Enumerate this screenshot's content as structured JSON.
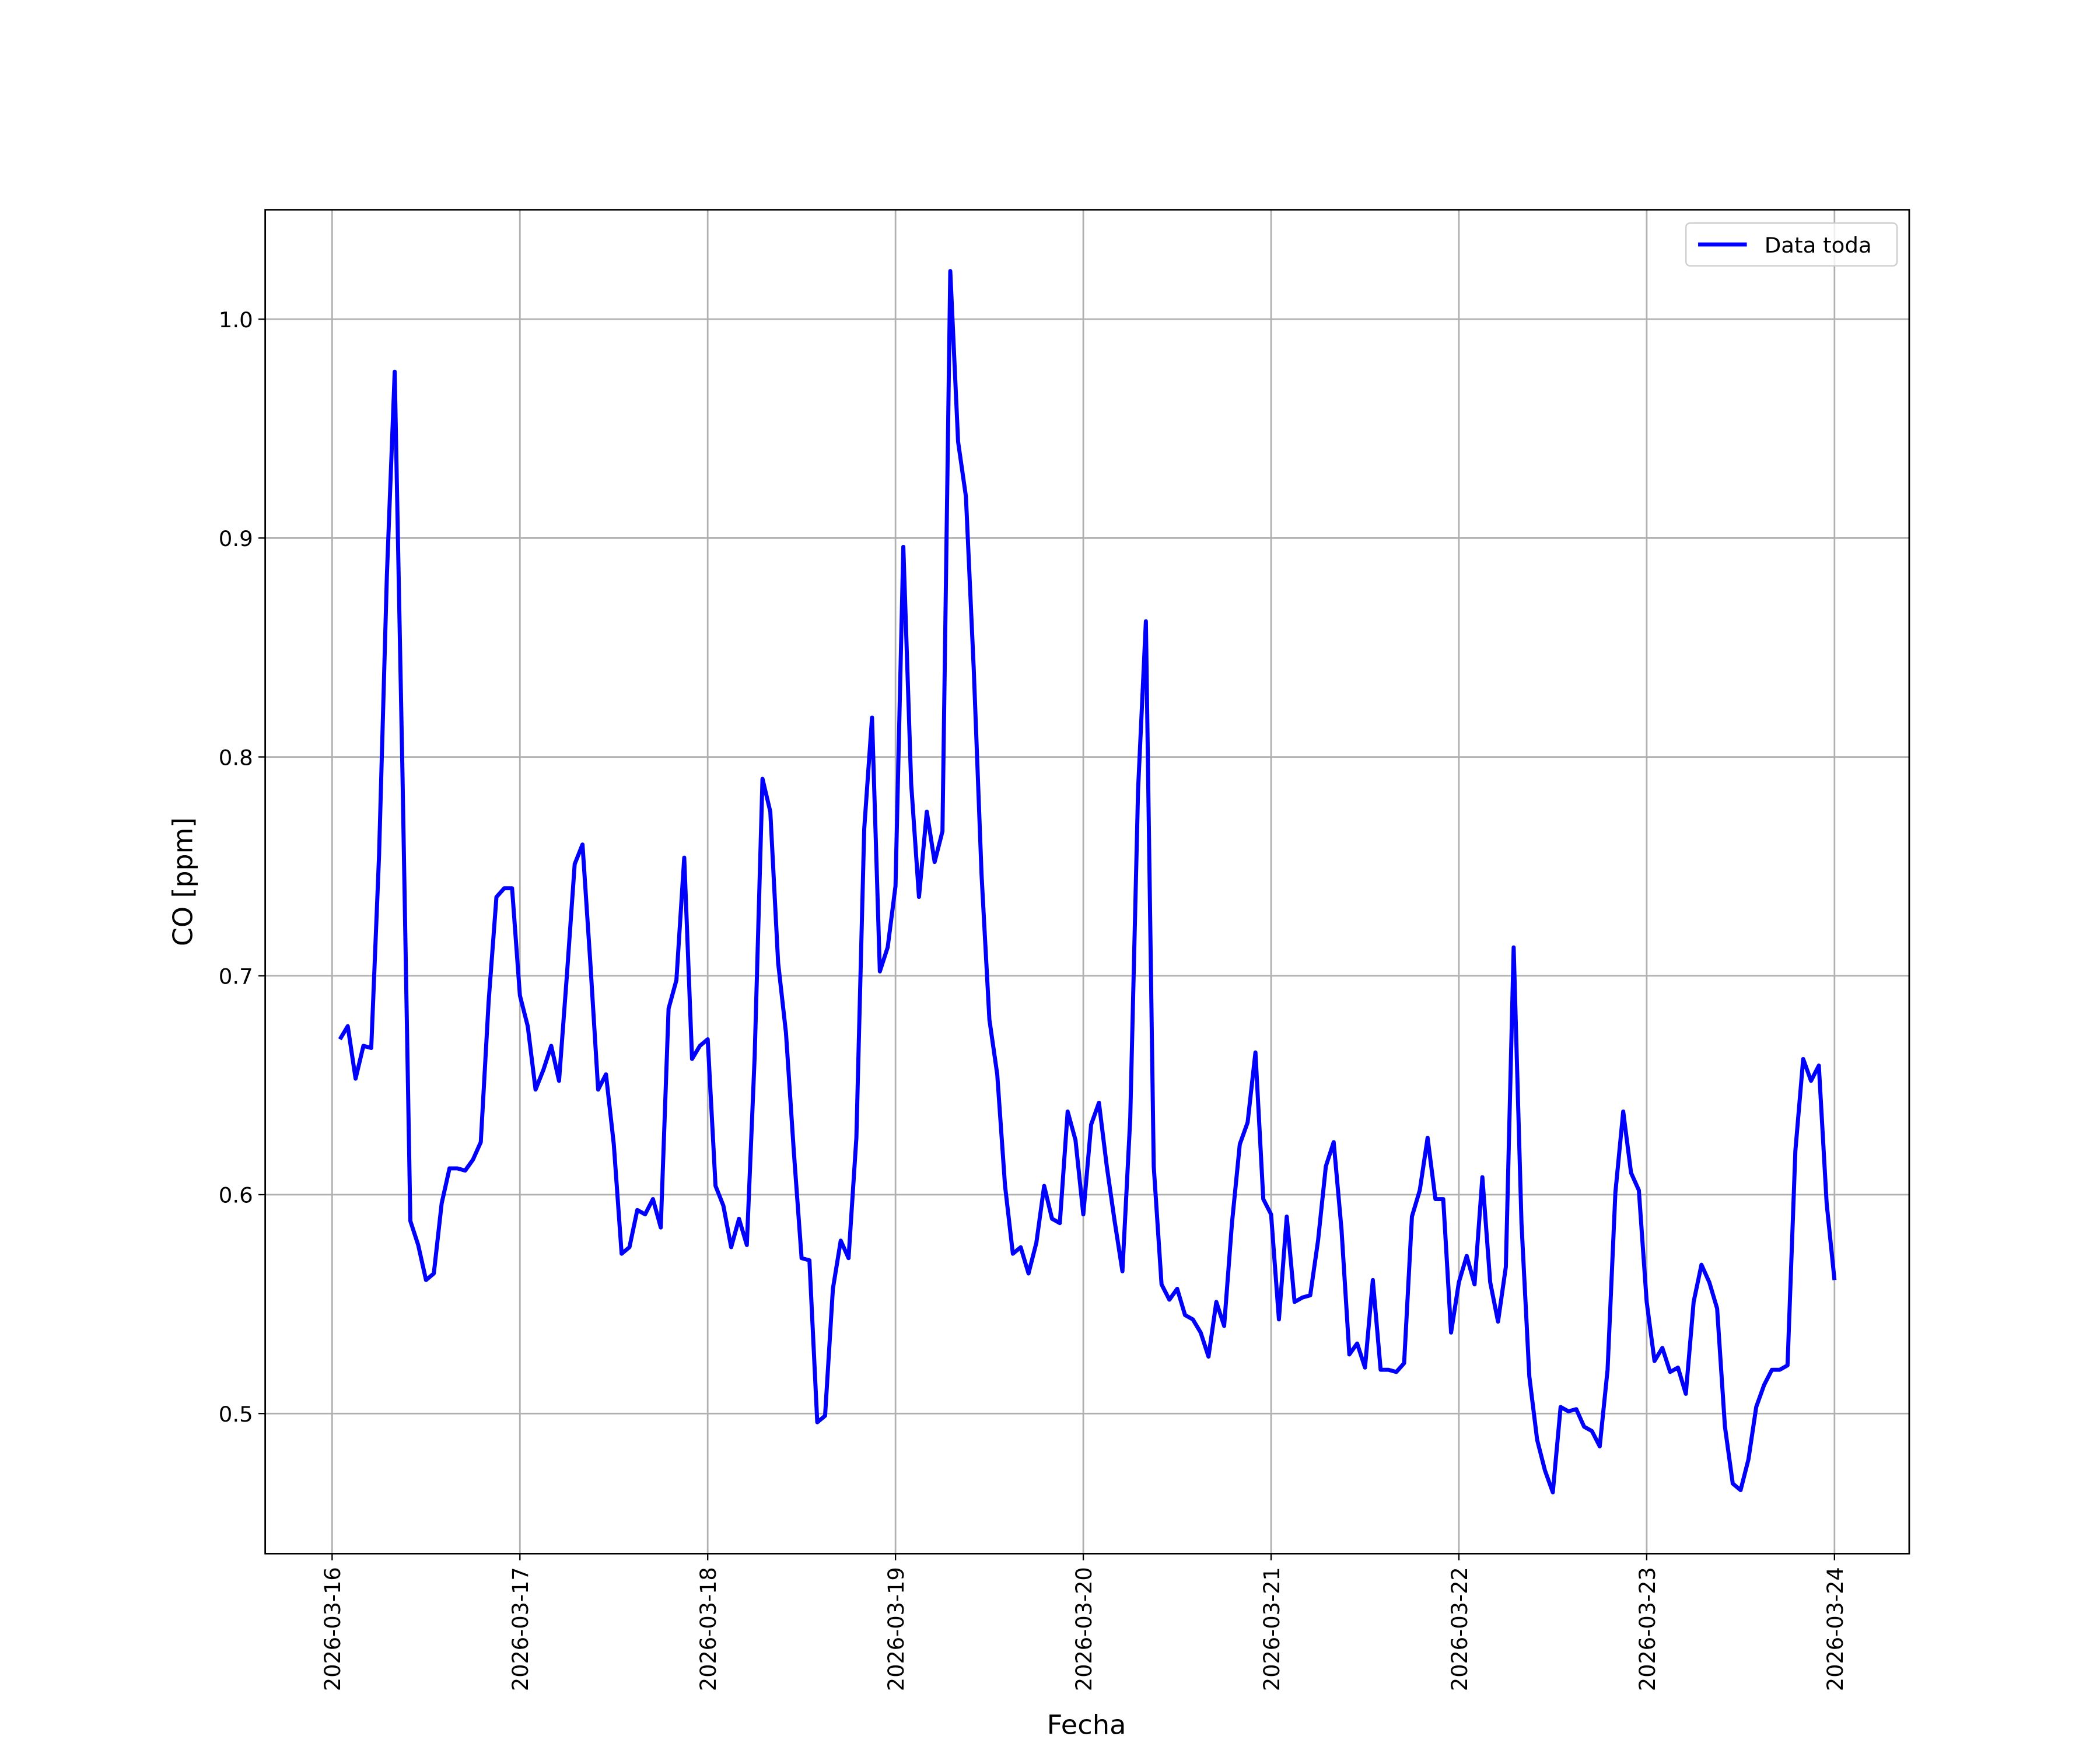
{
  "chart_data": {
    "type": "line",
    "x_label": "Fecha",
    "y_label": "CO [ppm]",
    "x": [
      "2026-03-16 01:00",
      "2026-03-16 02:00",
      "2026-03-16 03:00",
      "2026-03-16 04:00",
      "2026-03-16 05:00",
      "2026-03-16 06:00",
      "2026-03-16 07:00",
      "2026-03-16 08:00",
      "2026-03-16 09:00",
      "2026-03-16 10:00",
      "2026-03-16 11:00",
      "2026-03-16 12:00",
      "2026-03-16 13:00",
      "2026-03-16 14:00",
      "2026-03-16 15:00",
      "2026-03-16 16:00",
      "2026-03-16 17:00",
      "2026-03-16 18:00",
      "2026-03-16 19:00",
      "2026-03-16 20:00",
      "2026-03-16 21:00",
      "2026-03-16 22:00",
      "2026-03-16 23:00",
      "2026-03-17 00:00",
      "2026-03-17 01:00",
      "2026-03-17 02:00",
      "2026-03-17 03:00",
      "2026-03-17 04:00",
      "2026-03-17 05:00",
      "2026-03-17 06:00",
      "2026-03-17 07:00",
      "2026-03-17 08:00",
      "2026-03-17 09:00",
      "2026-03-17 10:00",
      "2026-03-17 11:00",
      "2026-03-17 12:00",
      "2026-03-17 13:00",
      "2026-03-17 14:00",
      "2026-03-17 15:00",
      "2026-03-17 16:00",
      "2026-03-17 17:00",
      "2026-03-17 18:00",
      "2026-03-17 19:00",
      "2026-03-17 20:00",
      "2026-03-17 21:00",
      "2026-03-17 22:00",
      "2026-03-17 23:00",
      "2026-03-18 00:00",
      "2026-03-18 01:00",
      "2026-03-18 02:00",
      "2026-03-18 03:00",
      "2026-03-18 04:00",
      "2026-03-18 05:00",
      "2026-03-18 06:00",
      "2026-03-18 07:00",
      "2026-03-18 08:00",
      "2026-03-18 09:00",
      "2026-03-18 10:00",
      "2026-03-18 11:00",
      "2026-03-18 12:00",
      "2026-03-18 13:00",
      "2026-03-18 14:00",
      "2026-03-18 15:00",
      "2026-03-18 16:00",
      "2026-03-18 17:00",
      "2026-03-18 18:00",
      "2026-03-18 19:00",
      "2026-03-18 20:00",
      "2026-03-18 21:00",
      "2026-03-18 22:00",
      "2026-03-18 23:00",
      "2026-03-19 00:00",
      "2026-03-19 01:00",
      "2026-03-19 02:00",
      "2026-03-19 03:00",
      "2026-03-19 04:00",
      "2026-03-19 05:00",
      "2026-03-19 06:00",
      "2026-03-19 07:00",
      "2026-03-19 08:00",
      "2026-03-19 09:00",
      "2026-03-19 10:00",
      "2026-03-19 11:00",
      "2026-03-19 12:00",
      "2026-03-19 13:00",
      "2026-03-19 14:00",
      "2026-03-19 15:00",
      "2026-03-19 16:00",
      "2026-03-19 17:00",
      "2026-03-19 18:00",
      "2026-03-19 19:00",
      "2026-03-19 20:00",
      "2026-03-19 21:00",
      "2026-03-19 22:00",
      "2026-03-19 23:00",
      "2026-03-20 00:00",
      "2026-03-20 01:00",
      "2026-03-20 02:00",
      "2026-03-20 03:00",
      "2026-03-20 04:00",
      "2026-03-20 05:00",
      "2026-03-20 06:00",
      "2026-03-20 07:00",
      "2026-03-20 08:00",
      "2026-03-20 09:00",
      "2026-03-20 10:00",
      "2026-03-20 11:00",
      "2026-03-20 12:00",
      "2026-03-20 13:00",
      "2026-03-20 14:00",
      "2026-03-20 15:00",
      "2026-03-20 16:00",
      "2026-03-20 17:00",
      "2026-03-20 18:00",
      "2026-03-20 19:00",
      "2026-03-20 20:00",
      "2026-03-20 21:00",
      "2026-03-20 22:00",
      "2026-03-20 23:00",
      "2026-03-21 00:00",
      "2026-03-21 01:00",
      "2026-03-21 02:00",
      "2026-03-21 03:00",
      "2026-03-21 04:00",
      "2026-03-21 05:00",
      "2026-03-21 06:00",
      "2026-03-21 07:00",
      "2026-03-21 08:00",
      "2026-03-21 09:00",
      "2026-03-21 10:00",
      "2026-03-21 11:00",
      "2026-03-21 12:00",
      "2026-03-21 13:00",
      "2026-03-21 14:00",
      "2026-03-21 15:00",
      "2026-03-21 16:00",
      "2026-03-21 17:00",
      "2026-03-21 18:00",
      "2026-03-21 19:00",
      "2026-03-21 20:00",
      "2026-03-21 21:00",
      "2026-03-21 22:00",
      "2026-03-21 23:00",
      "2026-03-22 00:00",
      "2026-03-22 01:00",
      "2026-03-22 02:00",
      "2026-03-22 03:00",
      "2026-03-22 04:00",
      "2026-03-22 05:00",
      "2026-03-22 06:00",
      "2026-03-22 07:00",
      "2026-03-22 08:00",
      "2026-03-22 09:00",
      "2026-03-22 10:00",
      "2026-03-22 11:00",
      "2026-03-22 12:00",
      "2026-03-22 13:00",
      "2026-03-22 14:00",
      "2026-03-22 15:00",
      "2026-03-22 16:00",
      "2026-03-22 17:00",
      "2026-03-22 18:00",
      "2026-03-22 19:00",
      "2026-03-22 20:00",
      "2026-03-22 21:00",
      "2026-03-22 22:00",
      "2026-03-22 23:00",
      "2026-03-23 00:00",
      "2026-03-23 01:00",
      "2026-03-23 02:00",
      "2026-03-23 03:00",
      "2026-03-23 04:00",
      "2026-03-23 05:00",
      "2026-03-23 06:00",
      "2026-03-23 07:00",
      "2026-03-23 08:00",
      "2026-03-23 09:00",
      "2026-03-23 10:00",
      "2026-03-23 11:00",
      "2026-03-23 12:00",
      "2026-03-23 13:00",
      "2026-03-23 14:00",
      "2026-03-23 15:00",
      "2026-03-23 16:00",
      "2026-03-23 17:00",
      "2026-03-23 18:00",
      "2026-03-23 19:00",
      "2026-03-23 20:00",
      "2026-03-23 21:00",
      "2026-03-23 22:00",
      "2026-03-23 23:00",
      "2026-03-24 00:00"
    ],
    "series": [
      {
        "name": "Data toda",
        "color": "#0000ff",
        "values": [
          0.671,
          0.677,
          0.653,
          0.668,
          0.667,
          0.755,
          0.883,
          0.976,
          0.791,
          0.588,
          0.577,
          0.561,
          0.564,
          0.596,
          0.612,
          0.612,
          0.611,
          0.616,
          0.624,
          0.688,
          0.736,
          0.74,
          0.74,
          0.691,
          0.677,
          0.648,
          0.657,
          0.668,
          0.652,
          0.7,
          0.751,
          0.76,
          0.706,
          0.648,
          0.655,
          0.623,
          0.573,
          0.576,
          0.593,
          0.591,
          0.598,
          0.585,
          0.685,
          0.698,
          0.754,
          0.662,
          0.668,
          0.671,
          0.604,
          0.595,
          0.576,
          0.589,
          0.577,
          0.663,
          0.79,
          0.775,
          0.706,
          0.674,
          0.62,
          0.571,
          0.57,
          0.496,
          0.499,
          0.557,
          0.579,
          0.571,
          0.626,
          0.767,
          0.818,
          0.702,
          0.713,
          0.741,
          0.896,
          0.788,
          0.736,
          0.775,
          0.752,
          0.766,
          1.022,
          0.944,
          0.919,
          0.84,
          0.746,
          0.68,
          0.655,
          0.604,
          0.573,
          0.576,
          0.564,
          0.578,
          0.604,
          0.589,
          0.587,
          0.638,
          0.625,
          0.591,
          0.632,
          0.642,
          0.613,
          0.588,
          0.565,
          0.635,
          0.785,
          0.862,
          0.613,
          0.559,
          0.552,
          0.557,
          0.545,
          0.543,
          0.537,
          0.526,
          0.551,
          0.54,
          0.587,
          0.623,
          0.633,
          0.665,
          0.598,
          0.591,
          0.543,
          0.59,
          0.551,
          0.553,
          0.554,
          0.579,
          0.613,
          0.624,
          0.584,
          0.527,
          0.532,
          0.521,
          0.561,
          0.52,
          0.52,
          0.519,
          0.523,
          0.59,
          0.602,
          0.626,
          0.598,
          0.598,
          0.537,
          0.56,
          0.572,
          0.559,
          0.608,
          0.56,
          0.542,
          0.567,
          0.713,
          0.587,
          0.517,
          0.488,
          0.474,
          0.464,
          0.503,
          0.501,
          0.502,
          0.494,
          0.492,
          0.485,
          0.52,
          0.601,
          0.638,
          0.61,
          0.602,
          0.551,
          0.524,
          0.53,
          0.519,
          0.521,
          0.509,
          0.551,
          0.568,
          0.56,
          0.548,
          0.494,
          0.468,
          0.465,
          0.479,
          0.503,
          0.513,
          0.52,
          0.52,
          0.522,
          0.62,
          0.662,
          0.652,
          0.659,
          0.596,
          0.561
        ]
      }
    ],
    "xlim": [
      "2026-03-15 15:27",
      "2026-03-24 09:33"
    ],
    "xticks": [
      "2026-03-16",
      "2026-03-17",
      "2026-03-18",
      "2026-03-19",
      "2026-03-20",
      "2026-03-21",
      "2026-03-22",
      "2026-03-23",
      "2026-03-24"
    ],
    "ylim": [
      0.436,
      1.05
    ],
    "yticks": [
      0.5,
      0.6,
      0.7,
      0.8,
      0.9,
      {
        "value": 1,
        "label": "1.0"
      }
    ],
    "grid": true,
    "legend": "upper right"
  }
}
